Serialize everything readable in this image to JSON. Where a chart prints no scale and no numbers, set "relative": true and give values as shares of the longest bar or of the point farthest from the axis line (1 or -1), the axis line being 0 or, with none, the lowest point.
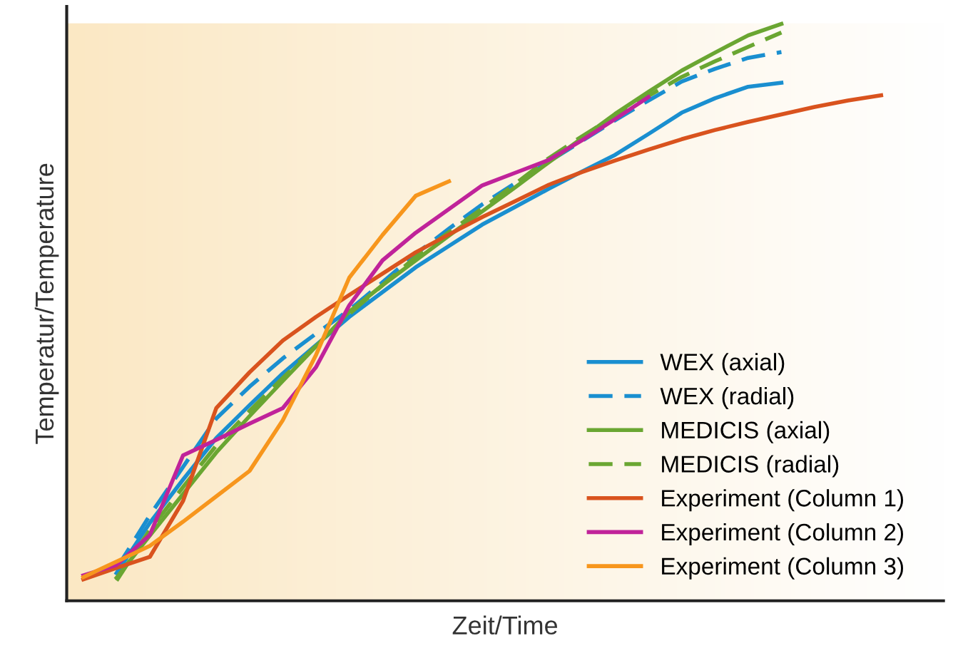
{
  "chart_data": {
    "type": "line",
    "relative": true,
    "xlabel": "Zeit/Time",
    "ylabel": "Temperatur/Temperature",
    "legend": "bottom right",
    "marker": "none",
    "categories": [
      null,
      null,
      null,
      null,
      null,
      null,
      null,
      null,
      null,
      null,
      null,
      null,
      null,
      null,
      null,
      null,
      null,
      null,
      null,
      null,
      null,
      null,
      null,
      null,
      null
    ],
    "series": [
      {
        "name": "WEX (axial)",
        "color": "#1a8fd0",
        "line_style": "solid",
        "values": [
          null,
          0.048,
          0.135,
          0.21,
          0.282,
          0.339,
          0.394,
          0.443,
          0.492,
          0.535,
          0.578,
          0.615,
          0.652,
          0.683,
          0.714,
          0.744,
          0.773,
          0.809,
          0.846,
          0.871,
          0.891,
          0.898,
          null,
          null,
          null
        ]
      },
      {
        "name": "WEX (radial)",
        "color": "#1a8fd0",
        "line_style": "dashed",
        "values": [
          null,
          0.056,
          0.148,
          0.232,
          0.316,
          0.371,
          0.42,
          0.463,
          0.504,
          0.552,
          0.601,
          0.645,
          0.687,
          0.724,
          0.761,
          0.797,
          0.833,
          0.867,
          0.9,
          0.922,
          0.941,
          0.951,
          null,
          null,
          null
        ]
      },
      {
        "name": "MEDICIS (axial)",
        "color": "#6aa632",
        "line_style": "solid",
        "values": [
          null,
          0.04,
          0.113,
          0.185,
          0.257,
          0.32,
          0.381,
          0.441,
          0.501,
          0.547,
          0.59,
          0.633,
          0.675,
          0.717,
          0.76,
          0.802,
          0.844,
          0.882,
          0.919,
          0.95,
          0.98,
          1,
          null,
          null,
          null
        ]
      },
      {
        "name": "MEDICIS (radial)",
        "color": "#6aa632",
        "line_style": "dashed",
        "values": [
          null,
          0.035,
          0.123,
          0.197,
          0.269,
          0.329,
          0.386,
          0.442,
          0.497,
          0.547,
          0.596,
          0.639,
          0.68,
          0.723,
          0.767,
          0.805,
          0.841,
          0.875,
          0.908,
          0.935,
          0.96,
          0.985,
          null,
          null,
          null
        ]
      },
      {
        "name": "Experiment (Column 1)",
        "color": "#d9531e",
        "line_style": "solid",
        "values": [
          0.037,
          0.057,
          0.076,
          0.173,
          0.334,
          0.396,
          0.451,
          0.492,
          0.53,
          0.567,
          0.604,
          0.635,
          0.665,
          0.693,
          0.721,
          0.743,
          0.763,
          0.782,
          0.8,
          0.816,
          0.83,
          0.843,
          0.856,
          0.867,
          0.876
        ]
      },
      {
        "name": "Experiment (Column 2)",
        "color": "#c0239a",
        "line_style": "solid",
        "values": [
          0.044,
          0.062,
          0.114,
          0.252,
          0.279,
          0.307,
          0.334,
          0.405,
          0.512,
          0.59,
          0.638,
          0.679,
          0.72,
          0.742,
          0.764,
          0.798,
          0.835,
          0.873,
          null,
          null,
          null,
          null,
          null,
          null,
          null
        ]
      },
      {
        "name": "Experiment (Column 3)",
        "color": "#f7961d",
        "line_style": "solid",
        "values": [
          0.041,
          0.068,
          0.095,
          0.137,
          0.181,
          0.225,
          0.313,
          0.426,
          0.56,
          0.634,
          0.702,
          0.727,
          null,
          null,
          null,
          null,
          null,
          null,
          null,
          null,
          null,
          null,
          null,
          null,
          null
        ]
      }
    ]
  }
}
